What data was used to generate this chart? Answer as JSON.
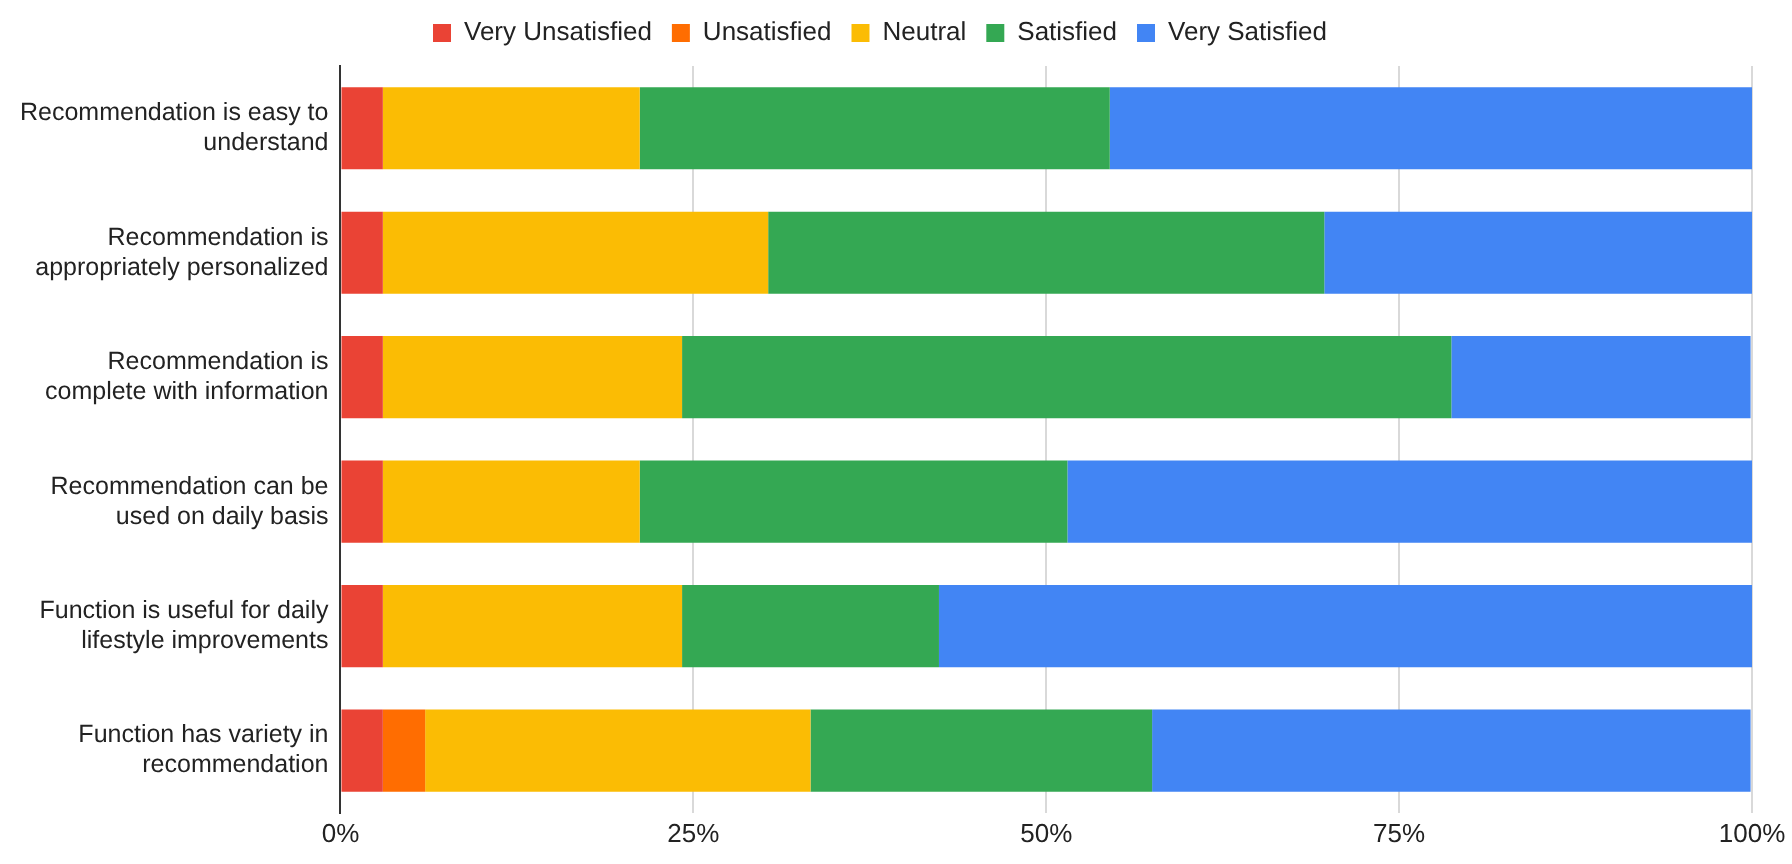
{
  "chart_data": {
    "type": "bar",
    "orientation": "horizontal",
    "stacked": true,
    "categories": [
      "Recommendation is easy to\nunderstand",
      "Recommendation is\nappropriately personalized",
      "Recommendation is\ncomplete with information",
      "Recommendation can be\nused on daily basis",
      "Function is useful for daily\nlifestyle improvements",
      "Function has variety in\nrecommendation"
    ],
    "series": [
      {
        "name": "Very Unsatisfied",
        "color": "#ea4335",
        "values": [
          3.0,
          3.0,
          3.0,
          3.0,
          3.0,
          3.0
        ]
      },
      {
        "name": "Unsatisfied",
        "color": "#ff6d01",
        "values": [
          0,
          0,
          0,
          0,
          0,
          3.0
        ]
      },
      {
        "name": "Neutral",
        "color": "#fbbc04",
        "values": [
          18.2,
          27.3,
          21.2,
          18.2,
          21.2,
          27.3
        ]
      },
      {
        "name": "Satisfied",
        "color": "#34a853",
        "values": [
          33.3,
          39.4,
          54.5,
          30.3,
          18.2,
          24.2
        ]
      },
      {
        "name": "Very Satisfied",
        "color": "#4285f4",
        "values": [
          45.5,
          30.3,
          21.2,
          48.5,
          57.6,
          42.4
        ]
      }
    ],
    "xlim": [
      0,
      100
    ],
    "xticks": [
      {
        "value": 0,
        "label": "0%"
      },
      {
        "value": 25,
        "label": "25%"
      },
      {
        "value": 50,
        "label": "50%"
      },
      {
        "value": 75,
        "label": "75%"
      },
      {
        "value": 100,
        "label": "100%"
      }
    ],
    "grid": "x",
    "legend": "top"
  }
}
